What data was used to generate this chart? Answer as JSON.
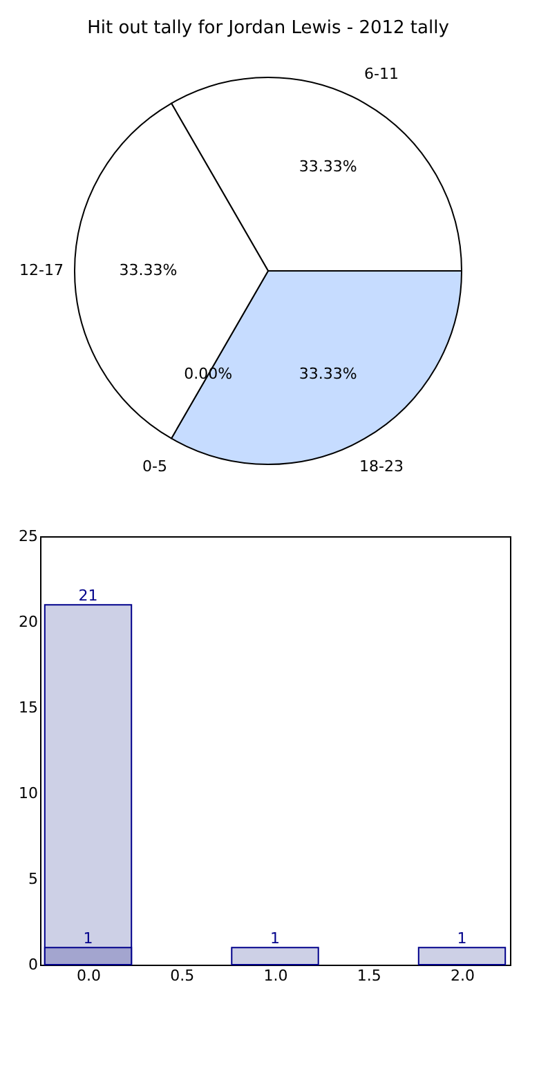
{
  "chart_data": [
    {
      "type": "pie",
      "title": "Hit out tally for Jordan Lewis - 2012 tally",
      "categories": [
        "6-11",
        "18-23",
        "0-5",
        "12-17"
      ],
      "values": [
        33.33,
        33.33,
        0,
        33.33
      ],
      "value_labels": [
        "33.33%",
        "33.33%",
        "0.00%",
        "33.33%"
      ],
      "colors": [
        "#ffffff",
        "#c6dcff",
        "#808080",
        "#ffffff"
      ]
    },
    {
      "type": "bar",
      "x": [
        0,
        1,
        2
      ],
      "series": [
        {
          "color": "#cdd0e6",
          "values": [
            21,
            1,
            1
          ]
        },
        {
          "color": "#a3a5cf",
          "values": [
            1,
            null,
            null
          ]
        }
      ],
      "xlim": [
        -0.22,
        2.22
      ],
      "xticks": [
        {
          "value": 0,
          "label": "0.0"
        },
        {
          "value": 0.5,
          "label": "0.5"
        },
        {
          "value": 1,
          "label": "1.0"
        },
        {
          "value": 1.5,
          "label": "1.5"
        },
        {
          "value": 2,
          "label": "2.0"
        }
      ],
      "ylim": [
        0,
        25
      ],
      "yticks": [
        0,
        5,
        10,
        15,
        20,
        25
      ],
      "data_labels": true,
      "grid": false
    }
  ]
}
